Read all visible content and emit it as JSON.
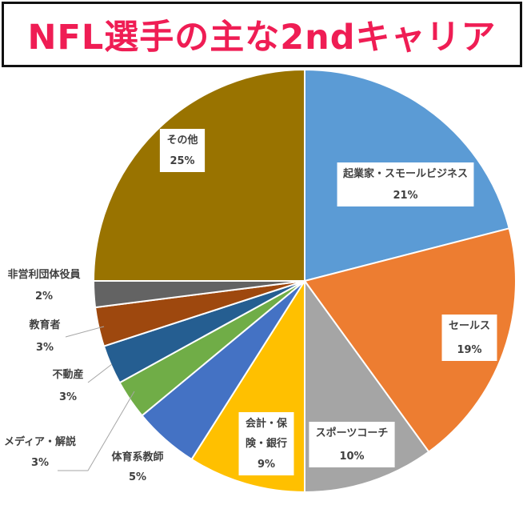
{
  "chart_data": {
    "type": "pie",
    "title": "NFL選手の主な2ndキャリア",
    "slices": [
      {
        "label": "起業家・スモールビジネス",
        "value_label": "21%",
        "value": 21,
        "color": "#5b9bd5"
      },
      {
        "label": "セールス",
        "value_label": "19%",
        "value": 19,
        "color": "#ed7d31"
      },
      {
        "label": "スポーツコーチ",
        "value_label": "10%",
        "value": 10,
        "color": "#a5a5a5"
      },
      {
        "label": "会計・保険・銀行",
        "value_label": "9%",
        "value": 9,
        "color": "#ffc000"
      },
      {
        "label": "体育系教師",
        "value_label": "5%",
        "value": 5,
        "color": "#4472c4"
      },
      {
        "label": "メディア・解説",
        "value_label": "3%",
        "value": 3,
        "color": "#70ad47"
      },
      {
        "label": "不動産",
        "value_label": "3%",
        "value": 3,
        "color": "#255e91"
      },
      {
        "label": "教育者",
        "value_label": "3%",
        "value": 3,
        "color": "#9e480e"
      },
      {
        "label": "非営利団体役員",
        "value_label": "2%",
        "value": 2,
        "color": "#636363"
      },
      {
        "label": "その他",
        "value_label": "25%",
        "value": 25,
        "color": "#997300"
      }
    ]
  }
}
